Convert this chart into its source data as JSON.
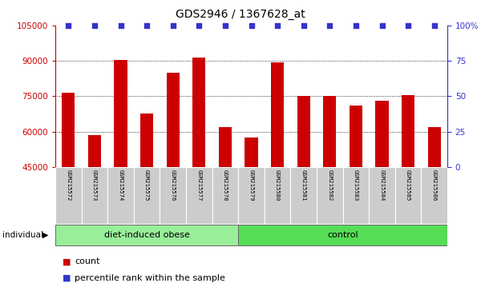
{
  "title": "GDS2946 / 1367628_at",
  "samples": [
    "GSM215572",
    "GSM215573",
    "GSM215574",
    "GSM215575",
    "GSM215576",
    "GSM215577",
    "GSM215578",
    "GSM215579",
    "GSM215580",
    "GSM215581",
    "GSM215582",
    "GSM215583",
    "GSM215584",
    "GSM215585",
    "GSM215586"
  ],
  "counts": [
    76500,
    58500,
    90500,
    67500,
    85000,
    91500,
    62000,
    57500,
    89500,
    75000,
    75000,
    71000,
    73000,
    75500,
    62000
  ],
  "bar_color": "#cc0000",
  "dot_color": "#3333cc",
  "ylim_left": [
    45000,
    105000
  ],
  "ylim_right": [
    0,
    100
  ],
  "yticks_left": [
    45000,
    60000,
    75000,
    90000,
    105000
  ],
  "yticks_right": [
    0,
    25,
    50,
    75,
    100
  ],
  "grid_ticks": [
    60000,
    75000,
    90000
  ],
  "groups": [
    {
      "label": "diet-induced obese",
      "start": 0,
      "end": 7,
      "color": "#99ee99"
    },
    {
      "label": "control",
      "start": 7,
      "end": 15,
      "color": "#55dd55"
    }
  ],
  "background_color": "#ffffff",
  "sample_box_color": "#cccccc",
  "legend_count_label": "count",
  "legend_pct_label": "percentile rank within the sample"
}
